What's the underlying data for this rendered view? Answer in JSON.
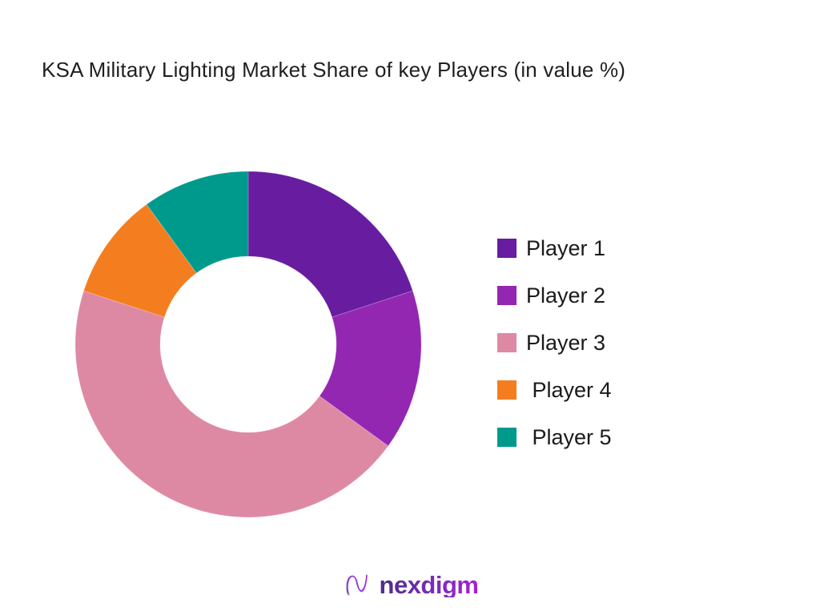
{
  "title": "KSA Military Lighting Market Share of key Players (in value %)",
  "chart_data": {
    "type": "pie",
    "subtype": "donut",
    "title": "KSA Military Lighting Market Share of key Players (in value %)",
    "categories": [
      "Player 1",
      "Player 2",
      "Player 3",
      "Player 4",
      "Player 5"
    ],
    "values": [
      20,
      15,
      45,
      10,
      10
    ],
    "unit": "value %",
    "colors": [
      "#681CA0",
      "#9427B2",
      "#DE89A3",
      "#F47D20",
      "#009A8C"
    ],
    "start_angle_deg": 0,
    "direction": "clockwise",
    "inner_radius_ratio": 0.51,
    "data_labels": false,
    "legend": {
      "position": "right",
      "labels": [
        "Player 1",
        "Player 2",
        "Player 3",
        " Player 4",
        " Player 5"
      ]
    }
  },
  "footer": {
    "brand": "nexdigm"
  },
  "page": {
    "background": "#FFFFFF",
    "title_color": "#1F1F1F",
    "legend_text_color": "#1A1A1A",
    "brand_gradient_start": "#4E2B86",
    "brand_gradient_end": "#A51FD6"
  }
}
